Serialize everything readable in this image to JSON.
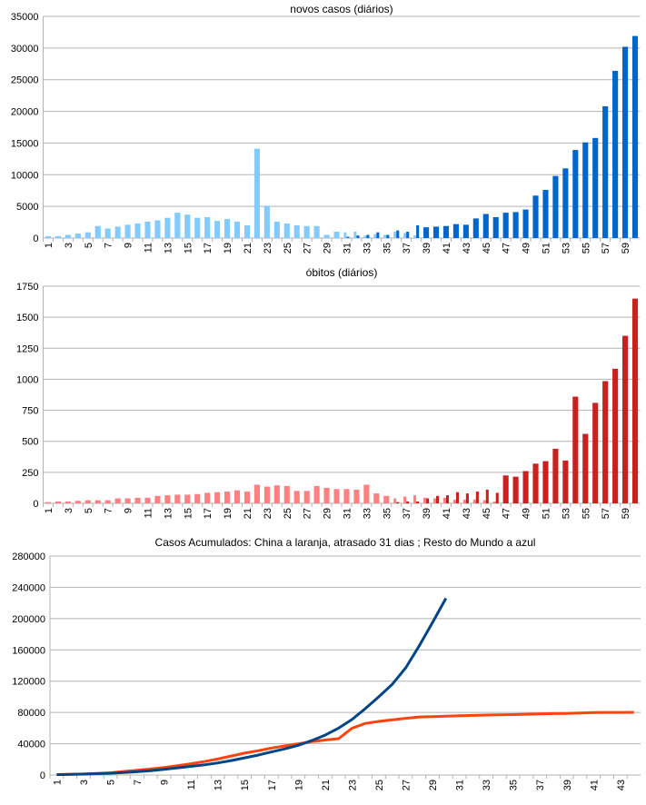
{
  "chart_data": [
    {
      "type": "bar",
      "title": "novos casos (diários)",
      "categories": [
        1,
        null,
        3,
        null,
        5,
        null,
        7,
        null,
        9,
        null,
        11,
        null,
        13,
        null,
        15,
        null,
        17,
        null,
        19,
        null,
        21,
        null,
        23,
        null,
        25,
        null,
        27,
        null,
        29,
        null,
        31,
        null,
        33,
        null,
        35,
        null,
        37,
        null,
        39,
        null,
        41,
        null,
        43,
        null,
        45,
        null,
        47,
        null,
        49,
        null,
        51,
        null,
        53,
        null,
        55,
        null,
        57,
        null,
        59,
        null
      ],
      "series": [
        {
          "color": "#83caff",
          "values": [
            300,
            300,
            500,
            700,
            900,
            1900,
            1500,
            1800,
            2100,
            2300,
            2600,
            2800,
            3200,
            4000,
            3700,
            3200,
            3300,
            2700,
            3000,
            2600,
            2000,
            14100,
            5100,
            2600,
            2300,
            2000,
            1900,
            1900,
            500,
            1000,
            900,
            1000,
            400,
            600,
            500,
            1000,
            800,
            400,
            null,
            null,
            null,
            null,
            null,
            null,
            null,
            null,
            null,
            null,
            null,
            null,
            null,
            null,
            null,
            null,
            null,
            null,
            null,
            null,
            null,
            null
          ]
        },
        {
          "color": "#0066cc",
          "values": [
            null,
            null,
            null,
            null,
            null,
            null,
            null,
            null,
            null,
            null,
            null,
            null,
            null,
            null,
            null,
            null,
            null,
            null,
            null,
            null,
            null,
            null,
            null,
            null,
            null,
            null,
            null,
            null,
            null,
            null,
            200,
            400,
            500,
            900,
            500,
            1200,
            1000,
            2000,
            1700,
            1800,
            1900,
            2200,
            2100,
            3100,
            3800,
            3300,
            4000,
            4100,
            4500,
            6700,
            7600,
            9800,
            11000,
            13900,
            15100,
            15800,
            20800,
            26400,
            30200,
            31900
          ]
        }
      ],
      "ylim": [
        0,
        35000
      ],
      "yticks": [
        0,
        5000,
        10000,
        15000,
        20000,
        25000,
        30000,
        35000
      ],
      "grid": true
    },
    {
      "type": "bar",
      "title": "óbitos (diários)",
      "categories": [
        1,
        null,
        3,
        null,
        5,
        null,
        7,
        null,
        9,
        null,
        11,
        null,
        13,
        null,
        15,
        null,
        17,
        null,
        19,
        null,
        21,
        null,
        23,
        null,
        25,
        null,
        27,
        null,
        29,
        null,
        31,
        null,
        33,
        null,
        35,
        null,
        37,
        null,
        39,
        null,
        41,
        null,
        43,
        null,
        45,
        null,
        47,
        null,
        49,
        null,
        51,
        null,
        53,
        null,
        55,
        null,
        57,
        null,
        59,
        null
      ],
      "series": [
        {
          "color": "#ff8080",
          "values": [
            10,
            15,
            15,
            20,
            25,
            25,
            25,
            40,
            40,
            45,
            45,
            60,
            65,
            70,
            70,
            75,
            85,
            90,
            95,
            105,
            95,
            150,
            135,
            145,
            140,
            100,
            100,
            140,
            125,
            115,
            115,
            110,
            150,
            80,
            60,
            40,
            55,
            65,
            45,
            40,
            45,
            30,
            30,
            30,
            25,
            15,
            null,
            null,
            null,
            null,
            null,
            null,
            null,
            null,
            null,
            null,
            null,
            null,
            null,
            null
          ]
        },
        {
          "color": "#c9211e",
          "values": [
            null,
            null,
            null,
            null,
            null,
            null,
            null,
            null,
            null,
            null,
            null,
            null,
            null,
            null,
            null,
            null,
            null,
            null,
            null,
            null,
            null,
            null,
            null,
            null,
            null,
            null,
            null,
            null,
            null,
            null,
            null,
            null,
            null,
            null,
            null,
            10,
            15,
            15,
            40,
            60,
            65,
            90,
            80,
            95,
            110,
            85,
            225,
            215,
            260,
            320,
            340,
            440,
            345,
            860,
            560,
            810,
            985,
            1085,
            1350,
            1650
          ]
        }
      ],
      "ylim": [
        0,
        1750
      ],
      "yticks": [
        0,
        250,
        500,
        750,
        1000,
        1250,
        1500,
        1750
      ],
      "grid": true
    },
    {
      "type": "line",
      "title": "Casos Acumulados: China a laranja, atrasado 31 dias ; Resto do Mundo a azul",
      "categories": [
        1,
        null,
        3,
        null,
        5,
        null,
        7,
        null,
        9,
        null,
        11,
        null,
        13,
        null,
        15,
        null,
        17,
        null,
        19,
        null,
        21,
        null,
        23,
        null,
        25,
        null,
        27,
        null,
        29,
        null,
        31,
        null,
        33,
        null,
        35,
        null,
        37,
        null,
        39,
        null,
        41,
        null,
        43,
        null
      ],
      "series": [
        {
          "color": "#ff420e",
          "values": [
            600,
            900,
            1300,
            2000,
            2800,
            4500,
            6000,
            7700,
            9700,
            11900,
            14400,
            17200,
            20400,
            24300,
            28000,
            31000,
            34500,
            37200,
            40000,
            42600,
            44700,
            46500,
            59800,
            66000,
            68500,
            70500,
            72500,
            74200,
            74700,
            75200,
            75800,
            76200,
            76700,
            77000,
            77300,
            77700,
            78100,
            78500,
            78800,
            79300,
            79800,
            80000,
            80100,
            80200
          ]
        },
        {
          "color": "#004586",
          "values": [
            500,
            800,
            1200,
            1700,
            2300,
            3100,
            4200,
            5600,
            7300,
            9200,
            11000,
            13000,
            15500,
            18500,
            22000,
            25500,
            29500,
            33500,
            38000,
            44000,
            51000,
            60000,
            71000,
            85000,
            100000,
            116000,
            137000,
            165000,
            195000,
            226000,
            null,
            null,
            null,
            null,
            null,
            null,
            null,
            null,
            null,
            null,
            null,
            null,
            null,
            null
          ]
        }
      ],
      "ylim": [
        0,
        280000
      ],
      "yticks": [
        0,
        40000,
        80000,
        120000,
        160000,
        200000,
        240000,
        280000
      ],
      "grid": true
    }
  ]
}
